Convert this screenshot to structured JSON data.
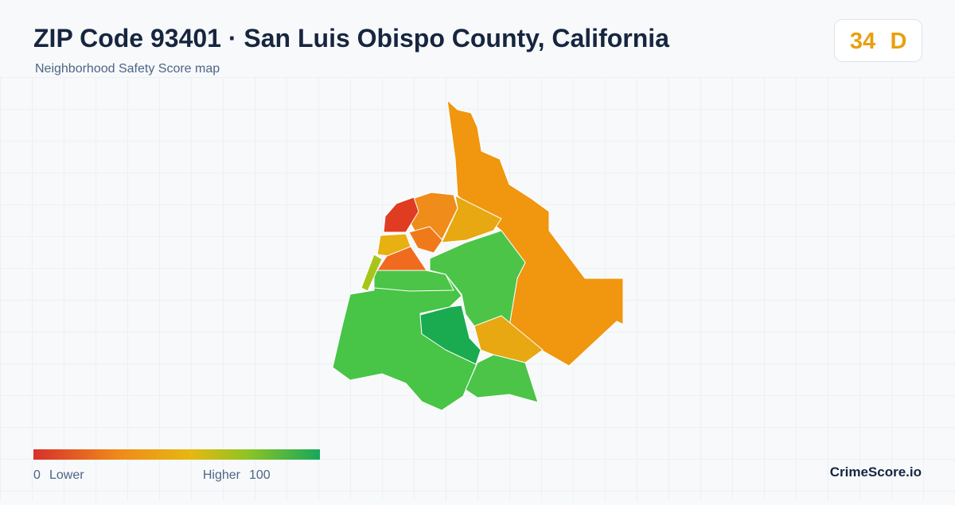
{
  "header": {
    "title": "ZIP Code 93401 · San Luis Obispo County, California",
    "subtitle": "Neighborhood Safety Score map"
  },
  "badge": {
    "score": 34,
    "grade": "D"
  },
  "legend": {
    "min": 0,
    "min_label": "Lower",
    "max_label": "Higher",
    "max": 100
  },
  "brand": "CrimeScore.io"
}
